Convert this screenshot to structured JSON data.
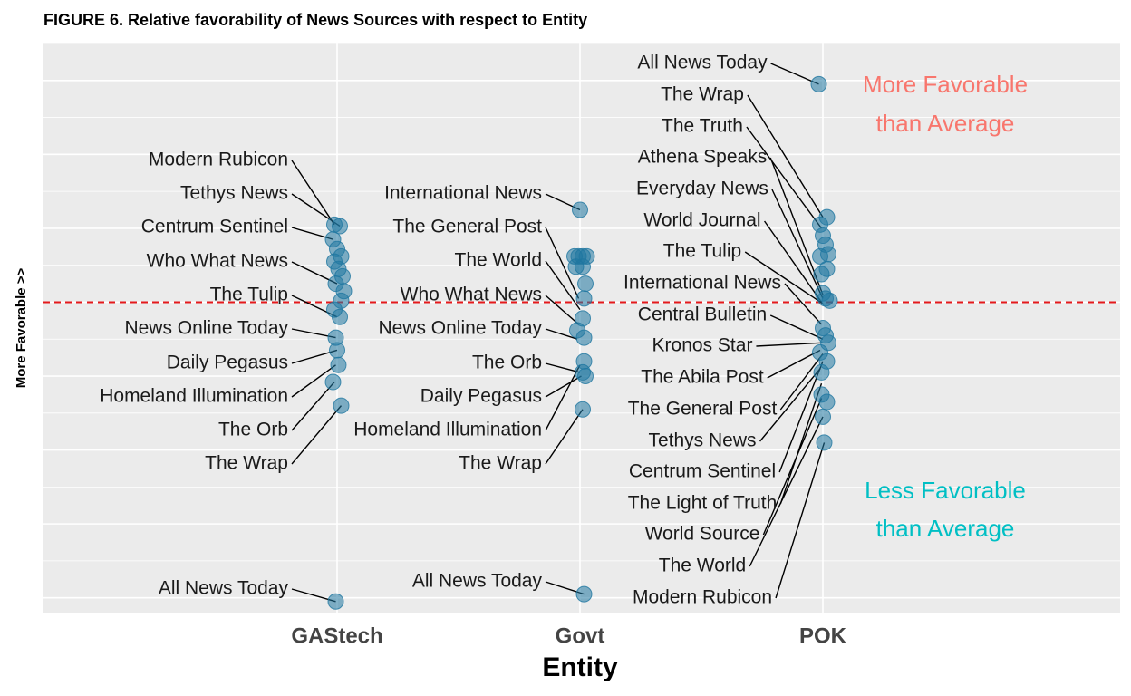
{
  "chart_data": {
    "type": "scatter",
    "title": "FIGURE 6. Relative favorability of News Sources with respect to Entity",
    "xlabel": "Entity",
    "ylabel": "More Favorable >>",
    "categories": [
      "GAStech",
      "Govt",
      "POK"
    ],
    "ylim": [
      -4.2,
      3.5
    ],
    "reference_line": {
      "y": 0,
      "style": "dashed",
      "color": "#e41a1c"
    },
    "grid": true,
    "point_color": "#1f77a0",
    "annotations": [
      {
        "text": "More Favorable than Average",
        "lines": [
          "More Favorable",
          "than Average"
        ],
        "color": "#f8766d"
      },
      {
        "text": "Less Favorable than Average",
        "lines": [
          "Less Favorable",
          "than Average"
        ],
        "color": "#00bfc4"
      }
    ],
    "points": [
      {
        "entity": "GAStech",
        "x": -0.02,
        "y": 1.05
      },
      {
        "entity": "GAStech",
        "x": 0.02,
        "y": 1.03
      },
      {
        "entity": "GAStech",
        "x": -0.03,
        "y": 0.85
      },
      {
        "entity": "GAStech",
        "x": 0.0,
        "y": 0.72
      },
      {
        "entity": "GAStech",
        "x": 0.03,
        "y": 0.62
      },
      {
        "entity": "GAStech",
        "x": -0.02,
        "y": 0.55
      },
      {
        "entity": "GAStech",
        "x": 0.01,
        "y": 0.45
      },
      {
        "entity": "GAStech",
        "x": 0.04,
        "y": 0.35
      },
      {
        "entity": "GAStech",
        "x": -0.01,
        "y": 0.25
      },
      {
        "entity": "GAStech",
        "x": 0.05,
        "y": 0.15
      },
      {
        "entity": "GAStech",
        "x": 0.03,
        "y": 0.02
      },
      {
        "entity": "GAStech",
        "x": -0.02,
        "y": -0.1
      },
      {
        "entity": "GAStech",
        "x": 0.02,
        "y": -0.2
      },
      {
        "entity": "GAStech",
        "x": -0.01,
        "y": -0.48
      },
      {
        "entity": "GAStech",
        "x": 0.0,
        "y": -0.65
      },
      {
        "entity": "GAStech",
        "x": 0.01,
        "y": -0.85
      },
      {
        "entity": "GAStech",
        "x": -0.03,
        "y": -1.08
      },
      {
        "entity": "GAStech",
        "x": 0.03,
        "y": -1.4
      },
      {
        "entity": "GAStech",
        "x": -0.01,
        "y": -4.05
      },
      {
        "entity": "Govt",
        "x": 0.0,
        "y": 1.25
      },
      {
        "entity": "Govt",
        "x": -0.04,
        "y": 0.62
      },
      {
        "entity": "Govt",
        "x": -0.01,
        "y": 0.62
      },
      {
        "entity": "Govt",
        "x": 0.02,
        "y": 0.62
      },
      {
        "entity": "Govt",
        "x": 0.05,
        "y": 0.62
      },
      {
        "entity": "Govt",
        "x": -0.03,
        "y": 0.48
      },
      {
        "entity": "Govt",
        "x": 0.02,
        "y": 0.48
      },
      {
        "entity": "Govt",
        "x": 0.04,
        "y": 0.25
      },
      {
        "entity": "Govt",
        "x": 0.03,
        "y": 0.05
      },
      {
        "entity": "Govt",
        "x": 0.02,
        "y": -0.22
      },
      {
        "entity": "Govt",
        "x": -0.02,
        "y": -0.38
      },
      {
        "entity": "Govt",
        "x": 0.03,
        "y": -0.48
      },
      {
        "entity": "Govt",
        "x": 0.03,
        "y": -0.8
      },
      {
        "entity": "Govt",
        "x": 0.02,
        "y": -0.95
      },
      {
        "entity": "Govt",
        "x": 0.04,
        "y": -1.0
      },
      {
        "entity": "Govt",
        "x": 0.02,
        "y": -1.45
      },
      {
        "entity": "Govt",
        "x": 0.03,
        "y": -3.95
      },
      {
        "entity": "POK",
        "x": -0.03,
        "y": 2.95
      },
      {
        "entity": "POK",
        "x": 0.03,
        "y": 1.15
      },
      {
        "entity": "POK",
        "x": -0.02,
        "y": 1.05
      },
      {
        "entity": "POK",
        "x": 0.0,
        "y": 0.9
      },
      {
        "entity": "POK",
        "x": 0.02,
        "y": 0.78
      },
      {
        "entity": "POK",
        "x": 0.04,
        "y": 0.65
      },
      {
        "entity": "POK",
        "x": -0.02,
        "y": 0.62
      },
      {
        "entity": "POK",
        "x": 0.03,
        "y": 0.45
      },
      {
        "entity": "POK",
        "x": -0.01,
        "y": 0.38
      },
      {
        "entity": "POK",
        "x": 0.0,
        "y": 0.12
      },
      {
        "entity": "POK",
        "x": 0.02,
        "y": 0.05
      },
      {
        "entity": "POK",
        "x": 0.05,
        "y": 0.02
      },
      {
        "entity": "POK",
        "x": 0.0,
        "y": -0.35
      },
      {
        "entity": "POK",
        "x": 0.02,
        "y": -0.45
      },
      {
        "entity": "POK",
        "x": 0.04,
        "y": -0.55
      },
      {
        "entity": "POK",
        "x": -0.02,
        "y": -0.68
      },
      {
        "entity": "POK",
        "x": 0.03,
        "y": -0.8
      },
      {
        "entity": "POK",
        "x": -0.01,
        "y": -0.95
      },
      {
        "entity": "POK",
        "x": -0.01,
        "y": -1.25
      },
      {
        "entity": "POK",
        "x": 0.03,
        "y": -1.35
      },
      {
        "entity": "POK",
        "x": 0.0,
        "y": -1.55
      },
      {
        "entity": "POK",
        "x": 0.01,
        "y": -1.9
      }
    ],
    "labels": [
      {
        "entity": "GAStech",
        "text": "Modern Rubicon",
        "point": [
          -0.02,
          1.05
        ]
      },
      {
        "entity": "GAStech",
        "text": "Tethys News",
        "point": [
          0.02,
          1.03
        ]
      },
      {
        "entity": "GAStech",
        "text": "Centrum Sentinel",
        "point": [
          -0.03,
          0.85
        ]
      },
      {
        "entity": "GAStech",
        "text": "Who What News",
        "point": [
          0.0,
          0.25
        ]
      },
      {
        "entity": "GAStech",
        "text": "The Tulip",
        "point": [
          0.0,
          -0.2
        ]
      },
      {
        "entity": "GAStech",
        "text": "News Online Today",
        "point": [
          -0.01,
          -0.48
        ]
      },
      {
        "entity": "GAStech",
        "text": "Daily Pegasus",
        "point": [
          0.0,
          -0.65
        ]
      },
      {
        "entity": "GAStech",
        "text": "Homeland Illumination",
        "point": [
          -0.01,
          -0.85
        ]
      },
      {
        "entity": "GAStech",
        "text": "The Orb",
        "point": [
          -0.02,
          -1.08
        ]
      },
      {
        "entity": "GAStech",
        "text": "The Wrap",
        "point": [
          0.03,
          -1.4
        ]
      },
      {
        "entity": "GAStech",
        "text": "All News Today",
        "point": [
          -0.01,
          -4.05
        ]
      },
      {
        "entity": "Govt",
        "text": "International News",
        "point": [
          0.0,
          1.25
        ]
      },
      {
        "entity": "Govt",
        "text": "The General Post",
        "point": [
          -0.01,
          0.05
        ]
      },
      {
        "entity": "Govt",
        "text": "The World",
        "point": [
          0.0,
          -0.1
        ]
      },
      {
        "entity": "Govt",
        "text": "Who What News",
        "point": [
          -0.01,
          -0.3
        ]
      },
      {
        "entity": "Govt",
        "text": "News Online Today",
        "point": [
          -0.02,
          -0.5
        ]
      },
      {
        "entity": "Govt",
        "text": "The Orb",
        "point": [
          0.0,
          -0.95
        ]
      },
      {
        "entity": "Govt",
        "text": "Daily Pegasus",
        "point": [
          0.01,
          -1.0
        ]
      },
      {
        "entity": "Govt",
        "text": "Homeland Illumination",
        "point": [
          0.0,
          -0.85
        ]
      },
      {
        "entity": "Govt",
        "text": "The Wrap",
        "point": [
          0.02,
          -1.45
        ]
      },
      {
        "entity": "Govt",
        "text": "All News Today",
        "point": [
          0.03,
          -3.95
        ]
      },
      {
        "entity": "POK",
        "text": "All News Today",
        "point": [
          -0.03,
          2.95
        ]
      },
      {
        "entity": "POK",
        "text": "The Wrap",
        "point": [
          0.0,
          1.15
        ]
      },
      {
        "entity": "POK",
        "text": "The Truth",
        "point": [
          -0.01,
          1.0
        ]
      },
      {
        "entity": "POK",
        "text": "Athena Speaks",
        "point": [
          0.0,
          0.1
        ]
      },
      {
        "entity": "POK",
        "text": "Everyday News",
        "point": [
          0.0,
          0.05
        ]
      },
      {
        "entity": "POK",
        "text": "World Journal",
        "point": [
          -0.01,
          0.0
        ]
      },
      {
        "entity": "POK",
        "text": "The Tulip",
        "point": [
          0.0,
          -0.02
        ]
      },
      {
        "entity": "POK",
        "text": "International News",
        "point": [
          -0.01,
          -0.3
        ]
      },
      {
        "entity": "POK",
        "text": "Central Bulletin",
        "point": [
          0.0,
          -0.5
        ]
      },
      {
        "entity": "POK",
        "text": "Kronos Star",
        "point": [
          -0.01,
          -0.55
        ]
      },
      {
        "entity": "POK",
        "text": "The Abila Post",
        "point": [
          -0.02,
          -0.65
        ]
      },
      {
        "entity": "POK",
        "text": "The General Post",
        "point": [
          0.0,
          -0.7
        ]
      },
      {
        "entity": "POK",
        "text": "Tethys News",
        "point": [
          -0.02,
          -0.9
        ]
      },
      {
        "entity": "POK",
        "text": "Centrum Sentinel",
        "point": [
          0.0,
          -0.8
        ]
      },
      {
        "entity": "POK",
        "text": "The Light of Truth",
        "point": [
          -0.01,
          -1.1
        ]
      },
      {
        "entity": "POK",
        "text": "World Source",
        "point": [
          -0.01,
          -1.3
        ]
      },
      {
        "entity": "POK",
        "text": "The World",
        "point": [
          0.0,
          -1.55
        ]
      },
      {
        "entity": "POK",
        "text": "Modern Rubicon",
        "point": [
          0.01,
          -1.9
        ]
      }
    ]
  }
}
